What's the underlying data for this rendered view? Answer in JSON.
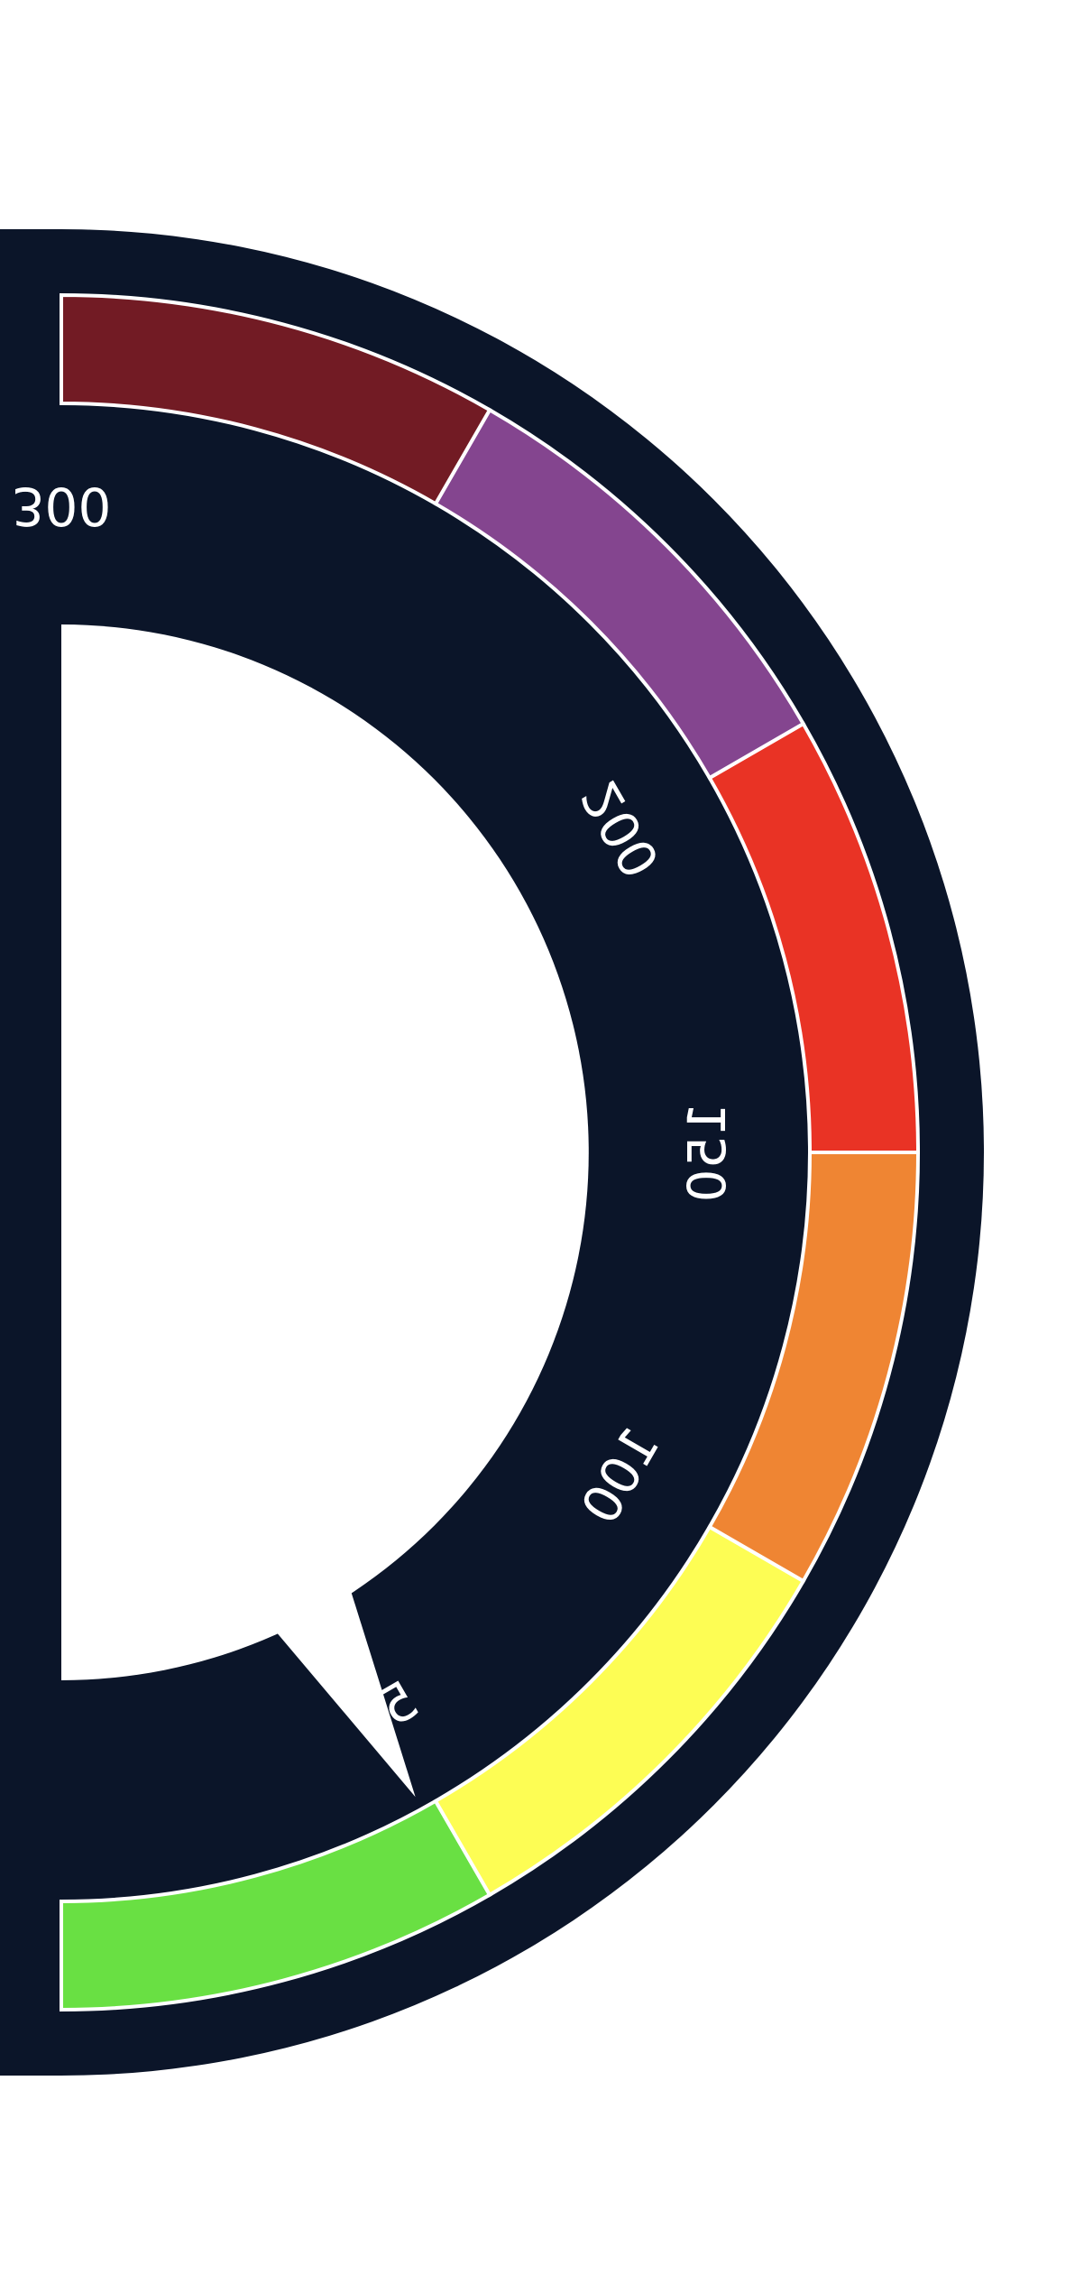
{
  "chart_data": {
    "type": "gauge",
    "mirrored": true,
    "range": [
      0,
      300
    ],
    "tick_labels": [
      "50",
      "100",
      "150",
      "200",
      "300"
    ],
    "bands": [
      {
        "from": 0,
        "to": 50,
        "color": "#69e043"
      },
      {
        "from": 50,
        "to": 100,
        "color": "#fdfd54"
      },
      {
        "from": 100,
        "to": 150,
        "color": "#ef8533"
      },
      {
        "from": 150,
        "to": 200,
        "color": "#e93325"
      },
      {
        "from": 200,
        "to": 250,
        "color": "#84458f"
      },
      {
        "from": 250,
        "to": 300,
        "color": "#721b24"
      }
    ],
    "needle_value": 48
  },
  "colors": {
    "dial_background": "#0b1529",
    "band_border": "#ffffff",
    "page_background": "#ffffff"
  }
}
